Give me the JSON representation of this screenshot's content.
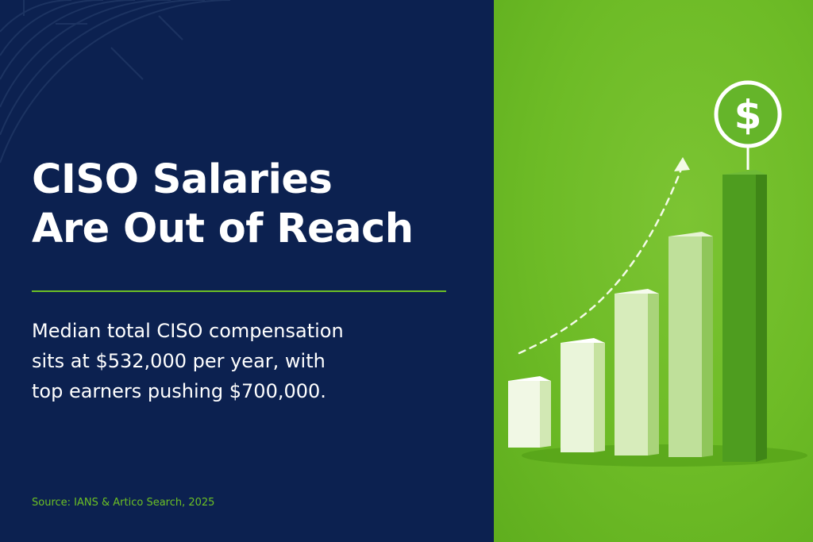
{
  "headline": {
    "line1": "CISO Salaries",
    "line2": "Are Out of Reach"
  },
  "body": {
    "line1": "Median total CISO compensation",
    "line2": "sits at $532,000 per year, with",
    "line3": "top earners pushing $700,000."
  },
  "source": "Source: IANS & Artico Search, 2025",
  "badge": {
    "symbol": "$",
    "icon": "dollar-icon"
  },
  "colors": {
    "navy": "#0c2150",
    "green": "#6cc024",
    "white": "#ffffff"
  }
}
